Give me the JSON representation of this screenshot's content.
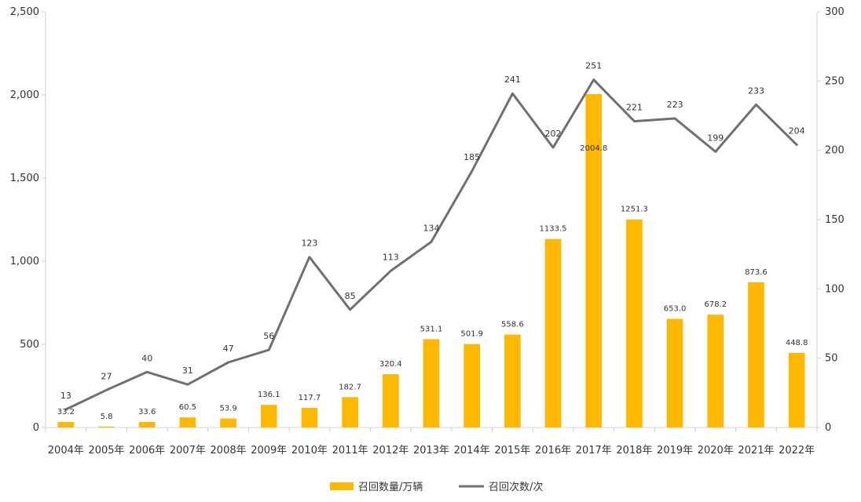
{
  "chart_data": {
    "type": "bar",
    "categories": [
      "2004年",
      "2005年",
      "2006年",
      "2007年",
      "2008年",
      "2009年",
      "2010年",
      "2011年",
      "2012年",
      "2013年",
      "2014年",
      "2015年",
      "2016年",
      "2017年",
      "2018年",
      "2019年",
      "2020年",
      "2021年",
      "2022年"
    ],
    "series": [
      {
        "name": "召回数量/万辆",
        "type": "bar",
        "axis": "left",
        "color": "#FFB800",
        "values": [
          33.2,
          5.8,
          33.6,
          60.5,
          53.9,
          136.1,
          117.7,
          182.7,
          320.4,
          531.1,
          501.9,
          558.6,
          1133.5,
          2004.8,
          1251.3,
          653.0,
          678.2,
          873.6,
          448.8
        ],
        "labels": [
          "33.2",
          "5.8",
          "33.6",
          "60.5",
          "53.9",
          "136.1",
          "117.7",
          "182.7",
          "320.4",
          "531.1",
          "501.9",
          "558.6",
          "1133.5",
          "2004.8",
          "1251.3",
          "653.0",
          "678.2",
          "873.6",
          "448.8"
        ]
      },
      {
        "name": "召回次数/次",
        "type": "line",
        "axis": "right",
        "color": "#707070",
        "values": [
          13,
          27,
          40,
          31,
          47,
          56,
          123,
          85,
          113,
          134,
          185,
          241,
          202,
          251,
          221,
          223,
          199,
          233,
          204
        ],
        "labels": [
          "13",
          "27",
          "40",
          "31",
          "47",
          "56",
          "123",
          "85",
          "113",
          "134",
          "185",
          "241",
          "202",
          "251",
          "221",
          "223",
          "199",
          "233",
          "204"
        ]
      }
    ],
    "y_left": {
      "ylim": [
        0,
        2500
      ],
      "ticks": [
        0,
        500,
        1000,
        1500,
        2000,
        2500
      ],
      "tick_labels": [
        "0",
        "500",
        "1,000",
        "1,500",
        "2,000",
        "2,500"
      ]
    },
    "y_right": {
      "ylim": [
        0,
        300
      ],
      "ticks": [
        0,
        50,
        100,
        150,
        200,
        250,
        300
      ],
      "tick_labels": [
        "0",
        "50",
        "100",
        "150",
        "200",
        "250",
        "300"
      ]
    },
    "title": "",
    "xlabel": "",
    "ylabel": "",
    "grid": false,
    "legend": {
      "position": "bottom",
      "items": [
        "召回数量/万辆",
        "召回次数/次"
      ]
    }
  }
}
